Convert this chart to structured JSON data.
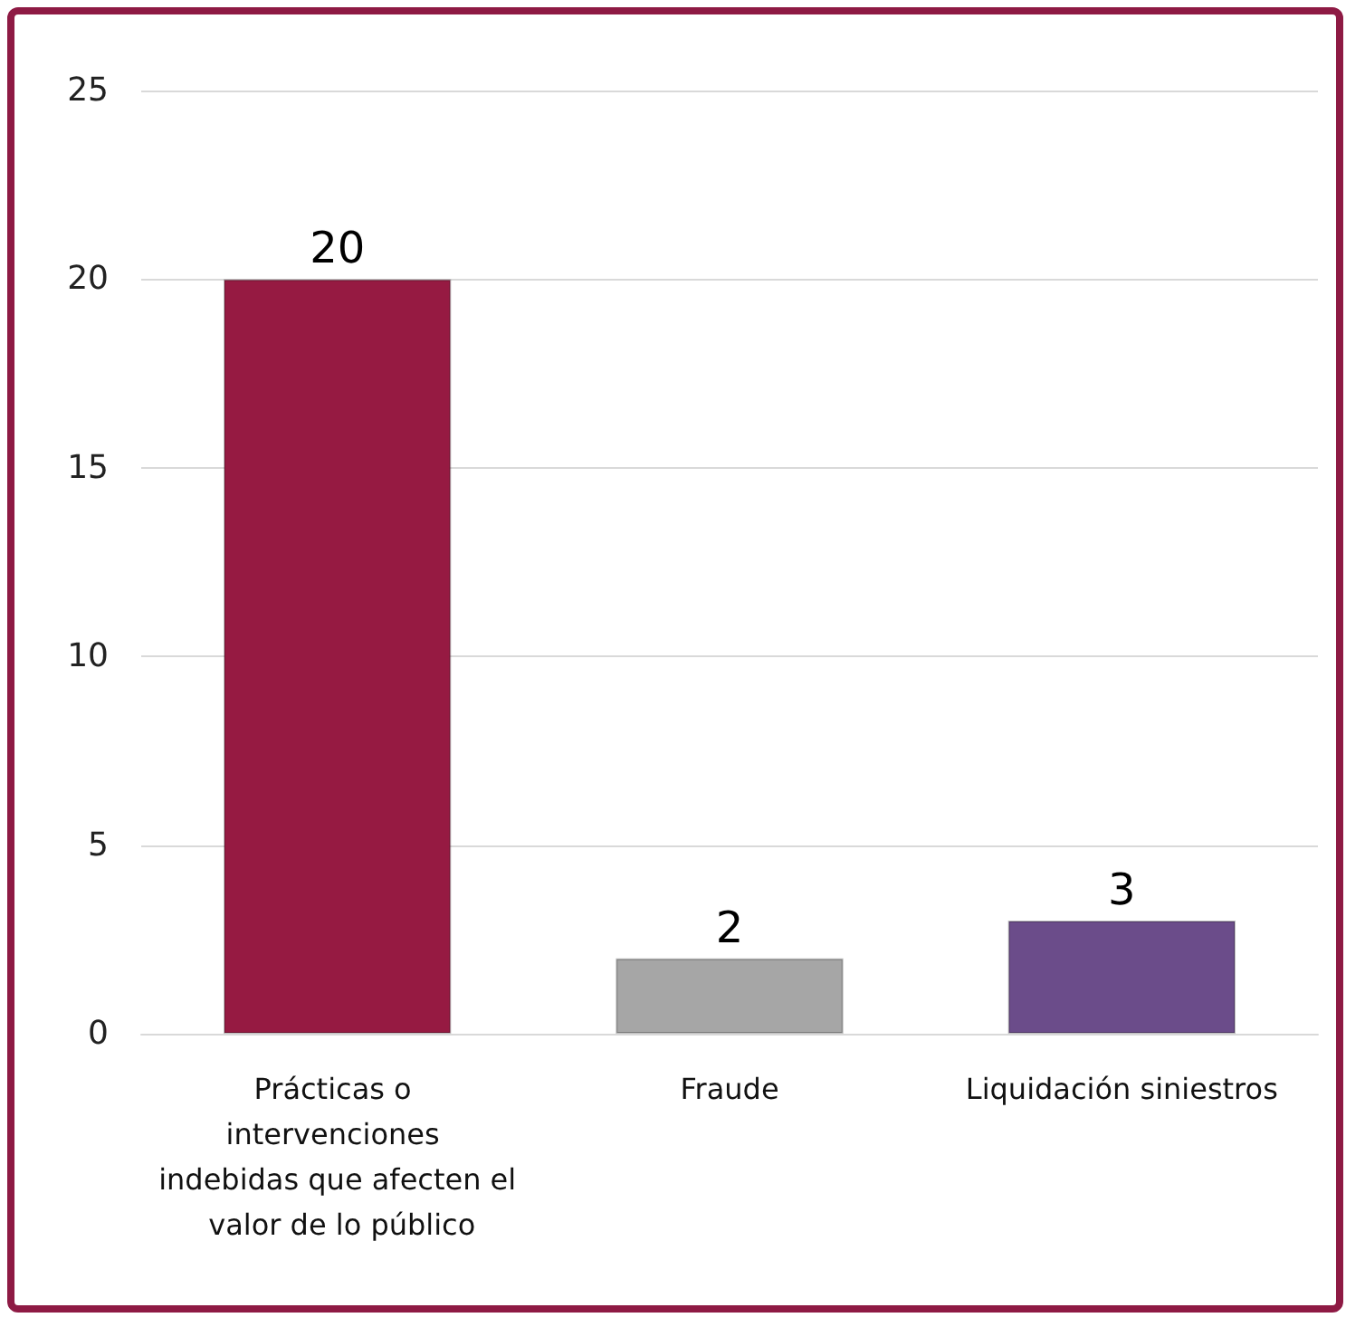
{
  "chart_data": {
    "type": "bar",
    "categories": [
      "Prácticas o intervenciones indebidas que afecten el valor de lo público",
      "Fraude",
      "Liquidación siniestros"
    ],
    "values": [
      20,
      2,
      3
    ],
    "colors": [
      "#961a42",
      "#a6a6a6",
      "#6b4c8a"
    ],
    "ylim": [
      0,
      25
    ],
    "yticks": [
      0,
      5,
      10,
      15,
      20,
      25
    ],
    "grid": true,
    "data_labels": true
  }
}
